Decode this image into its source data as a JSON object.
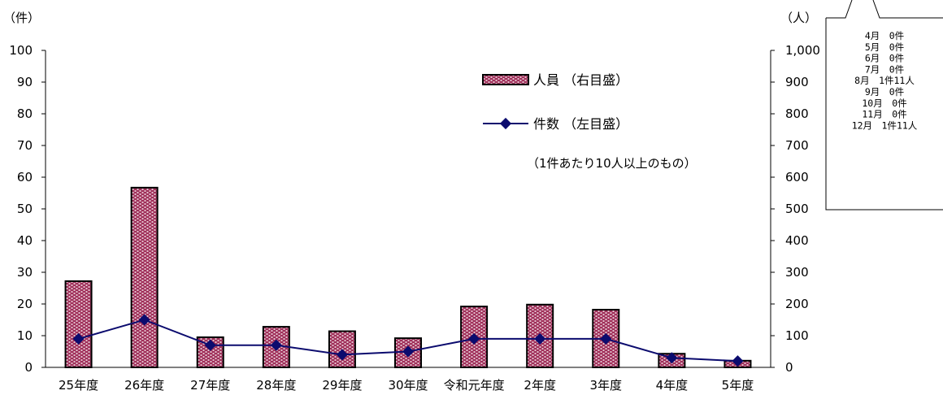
{
  "chart_data": {
    "type": "bar",
    "categories": [
      "25年度",
      "26年度",
      "27年度",
      "28年度",
      "29年度",
      "30年度",
      "令和元年度",
      "2年度",
      "3年度",
      "4年度",
      "5年度"
    ],
    "series": [
      {
        "name": "人員 （右目盛）",
        "type": "bar",
        "axis": "right",
        "values": [
          272,
          567,
          95,
          128,
          114,
          92,
          192,
          198,
          182,
          43,
          21
        ]
      },
      {
        "name": "件数 （左目盛）",
        "type": "line",
        "axis": "left",
        "values": [
          9,
          15,
          7,
          7,
          4,
          5,
          9,
          9,
          9,
          3,
          2
        ]
      }
    ],
    "left_axis": {
      "unit_label": "（件）",
      "range": [
        0,
        100
      ],
      "ticks": [
        "0",
        "10",
        "20",
        "30",
        "40",
        "50",
        "60",
        "70",
        "80",
        "90",
        "100"
      ]
    },
    "right_axis": {
      "unit_label": "（人）",
      "range": [
        0,
        1000
      ],
      "ticks": [
        "0",
        "100",
        "200",
        "300",
        "400",
        "500",
        "600",
        "700",
        "800",
        "900",
        "1,000"
      ]
    },
    "annotation": "（1件あたり10人以上のもの）",
    "legend_position": "upper-right",
    "grid": false
  },
  "callout": {
    "lines": [
      "4月　0件",
      "5月　0件",
      "6月　0件",
      "7月　0件",
      "8月　1件11人",
      "9月　0件",
      "10月　0件",
      "11月　0件",
      "12月　1件11人"
    ]
  },
  "colors": {
    "bar_fill": "#a0305a",
    "bar_dots": "#ffffff",
    "line": "#0b0b6e",
    "axis": "#000000"
  }
}
